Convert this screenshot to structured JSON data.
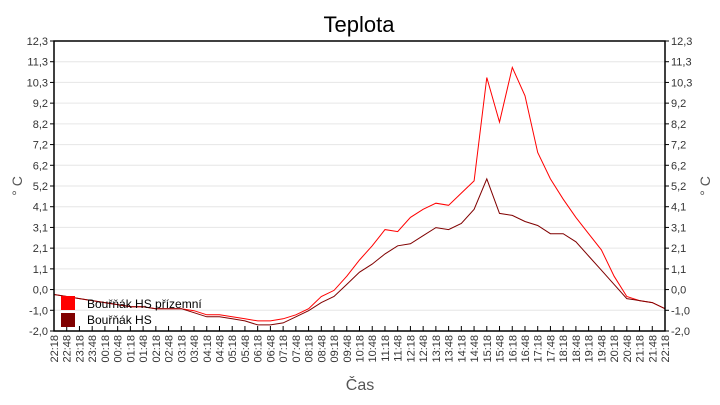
{
  "chart_data": {
    "type": "line",
    "title": "Teplota",
    "xlabel": "Čas",
    "ylabel": "° C",
    "ylim": [
      -2.0,
      12.3
    ],
    "yticks": [
      "-2,0",
      "-1,0",
      "0,0",
      "1,1",
      "2,1",
      "3,1",
      "4,1",
      "5,2",
      "6,2",
      "7,2",
      "8,2",
      "9,2",
      "10,3",
      "11,3",
      "12,3"
    ],
    "x": [
      "22:18",
      "22:48",
      "23:18",
      "23:48",
      "00:18",
      "00:48",
      "01:18",
      "01:48",
      "02:18",
      "02:48",
      "03:18",
      "03:48",
      "04:18",
      "04:48",
      "05:18",
      "05:48",
      "06:18",
      "06:48",
      "07:18",
      "07:48",
      "08:18",
      "08:48",
      "09:18",
      "09:48",
      "10:18",
      "10:48",
      "11:18",
      "11:48",
      "12:18",
      "12:48",
      "13:18",
      "13:48",
      "14:18",
      "14:48",
      "15:18",
      "15:48",
      "16:18",
      "16:48",
      "17:18",
      "17:48",
      "18:18",
      "18:48",
      "19:18",
      "19:48",
      "20:18",
      "20:48",
      "21:18",
      "21:48",
      "22:18"
    ],
    "grid": "horizontal",
    "legend_position": "bottom-left inside",
    "series": [
      {
        "name": "Bouřňák HS přízemní",
        "color": "#ff0000",
        "values": [
          -0.2,
          -0.3,
          -0.4,
          -0.5,
          -0.6,
          -0.7,
          -0.8,
          -0.8,
          -0.9,
          -0.9,
          -0.9,
          -1.0,
          -1.2,
          -1.2,
          -1.3,
          -1.4,
          -1.5,
          -1.5,
          -1.4,
          -1.2,
          -0.9,
          -0.3,
          0.0,
          0.7,
          1.5,
          2.2,
          3.0,
          2.9,
          3.6,
          4.0,
          4.3,
          4.2,
          4.8,
          5.4,
          10.5,
          8.3,
          11.0,
          9.6,
          6.8,
          5.5,
          4.5,
          3.6,
          2.8,
          2.0,
          0.7,
          -0.3,
          -0.5,
          -0.6,
          -0.9
        ]
      },
      {
        "name": "Bouřňák HS",
        "color": "#800000",
        "values": [
          -0.2,
          -0.3,
          -0.4,
          -0.5,
          -0.6,
          -0.7,
          -0.8,
          -0.8,
          -0.9,
          -0.9,
          -0.9,
          -1.1,
          -1.3,
          -1.3,
          -1.4,
          -1.5,
          -1.7,
          -1.7,
          -1.6,
          -1.3,
          -1.0,
          -0.6,
          -0.3,
          0.3,
          0.9,
          1.3,
          1.8,
          2.2,
          2.3,
          2.7,
          3.1,
          3.0,
          3.3,
          4.0,
          5.5,
          3.8,
          3.7,
          3.4,
          3.2,
          2.8,
          2.8,
          2.4,
          1.7,
          1.0,
          0.3,
          -0.4,
          -0.5,
          -0.6,
          -0.9
        ]
      }
    ]
  }
}
